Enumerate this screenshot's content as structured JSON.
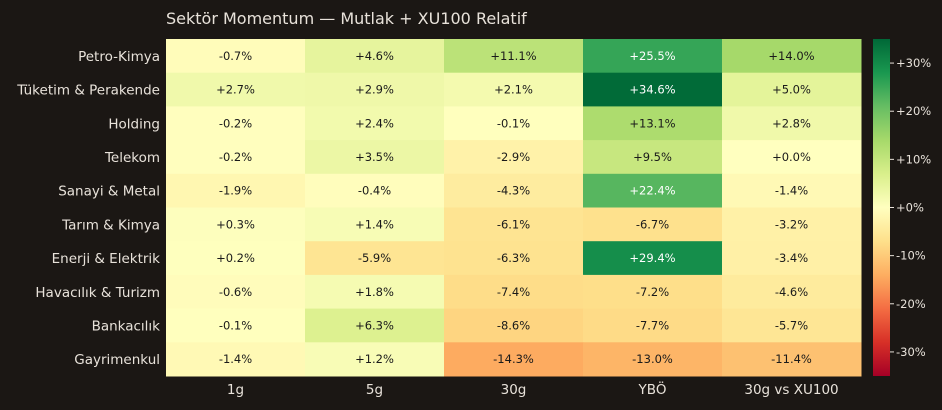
{
  "chart_data": {
    "type": "heatmap",
    "title": "Sektör Momentum — Mutlak + XU100 Relatif",
    "rows": [
      "Petro-Kimya",
      "Tüketim & Perakende",
      "Holding",
      "Telekom",
      "Sanayi & Metal",
      "Tarım & Kimya",
      "Enerji & Elektrik",
      "Havacılık & Turizm",
      "Bankacılık",
      "Gayrimenkul"
    ],
    "columns": [
      "1g",
      "5g",
      "30g",
      "YBÖ",
      "30g vs XU100"
    ],
    "values": [
      [
        -0.7,
        4.6,
        11.1,
        25.5,
        14.0
      ],
      [
        2.7,
        2.9,
        2.1,
        34.6,
        5.0
      ],
      [
        -0.2,
        2.4,
        -0.1,
        13.1,
        2.8
      ],
      [
        -0.2,
        3.5,
        -2.9,
        9.5,
        0.0
      ],
      [
        -1.9,
        -0.4,
        -4.3,
        22.4,
        -1.4
      ],
      [
        0.3,
        1.4,
        -6.1,
        -6.7,
        -3.2
      ],
      [
        0.2,
        -5.9,
        -6.3,
        29.4,
        -3.4
      ],
      [
        -0.6,
        1.8,
        -7.4,
        -7.2,
        -4.6
      ],
      [
        -0.1,
        6.3,
        -8.6,
        -7.7,
        -5.7
      ],
      [
        -1.4,
        1.2,
        -14.3,
        -13.0,
        -11.4
      ]
    ],
    "cell_labels": [
      [
        "-0.7%",
        "+4.6%",
        "+11.1%",
        "+25.5%",
        "+14.0%"
      ],
      [
        "+2.7%",
        "+2.9%",
        "+2.1%",
        "+34.6%",
        "+5.0%"
      ],
      [
        "-0.2%",
        "+2.4%",
        "-0.1%",
        "+13.1%",
        "+2.8%"
      ],
      [
        "-0.2%",
        "+3.5%",
        "-2.9%",
        "+9.5%",
        "+0.0%"
      ],
      [
        "-1.9%",
        "-0.4%",
        "-4.3%",
        "+22.4%",
        "-1.4%"
      ],
      [
        "+0.3%",
        "+1.4%",
        "-6.1%",
        "-6.7%",
        "-3.2%"
      ],
      [
        "+0.2%",
        "-5.9%",
        "-6.3%",
        "+29.4%",
        "-3.4%"
      ],
      [
        "-0.6%",
        "+1.8%",
        "-7.4%",
        "-7.2%",
        "-4.6%"
      ],
      [
        "-0.1%",
        "+6.3%",
        "-8.6%",
        "-7.7%",
        "-5.7%"
      ],
      [
        "-1.4%",
        "+1.2%",
        "-14.3%",
        "-13.0%",
        "-11.4%"
      ]
    ],
    "colorbar": {
      "vmin": -35,
      "vmax": 35,
      "ticks": [
        30,
        20,
        10,
        0,
        -10,
        -20,
        -30
      ],
      "tick_labels": [
        "+30%",
        "+20%",
        "+10%",
        "+0%",
        "-10%",
        "-20%",
        "-30%"
      ],
      "colormap": "RdYlGn",
      "colors": [
        "#a50026",
        "#d73027",
        "#f46d43",
        "#fdae61",
        "#fee08b",
        "#ffffbf",
        "#d9ef8b",
        "#a6d96a",
        "#66bd63",
        "#1a9850",
        "#006837"
      ]
    },
    "colors": {
      "background": "#1b1714",
      "text_light": "#e8e2da",
      "cell_text_dark": "#1a1a1a",
      "cell_text_light": "#ffffff"
    }
  }
}
